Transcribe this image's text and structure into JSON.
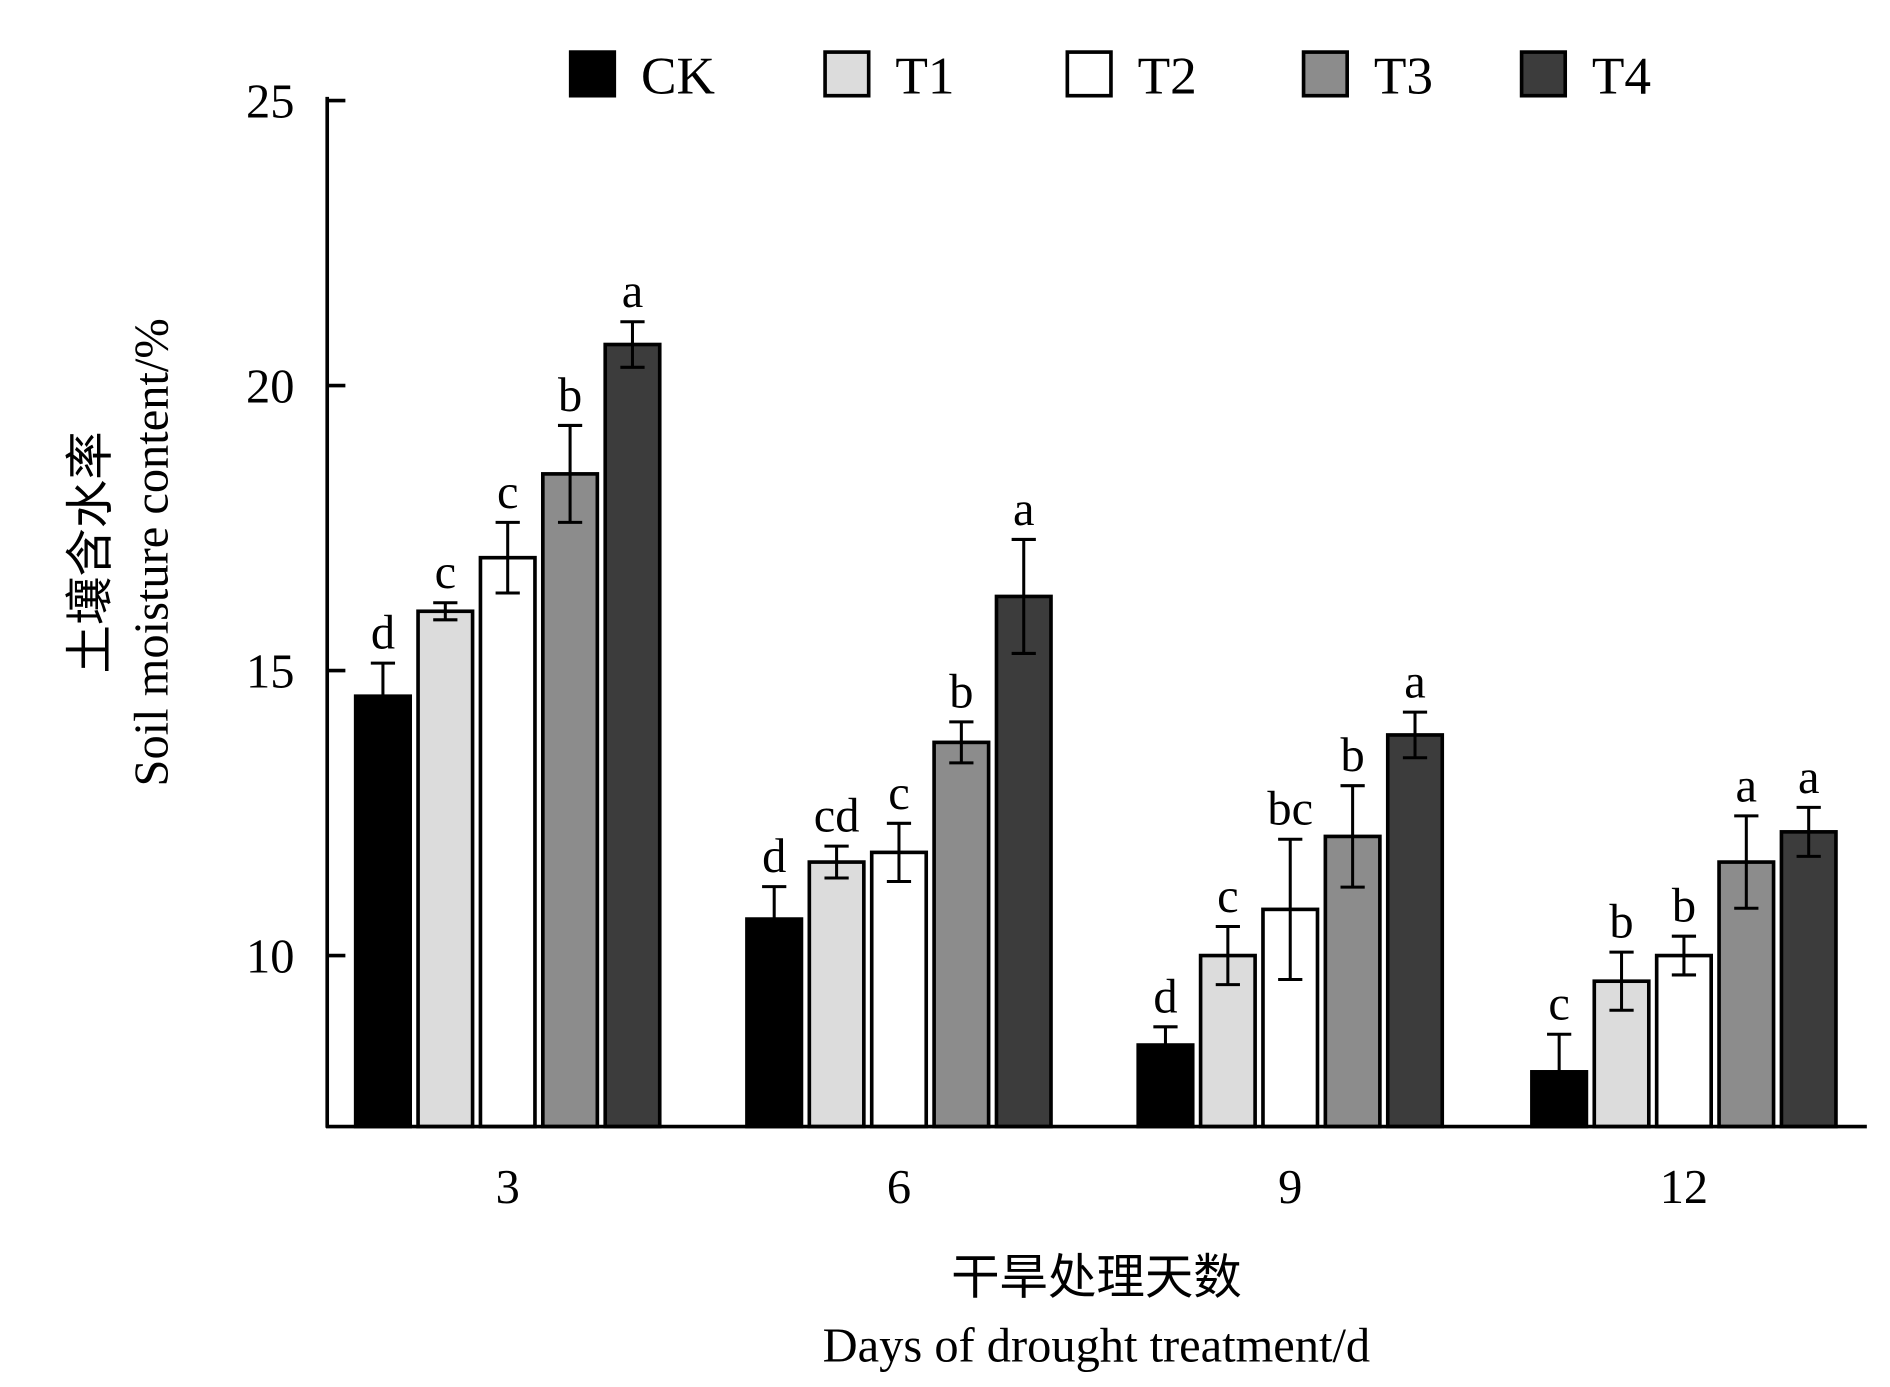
{
  "chart_data": {
    "type": "bar",
    "title": "",
    "xlabel_cn": "干旱处理天数",
    "xlabel": "Days of drought treatment/d",
    "ylabel_cn": "土壤含水率",
    "ylabel": "Soil moisture content/%",
    "ylim": [
      7,
      25
    ],
    "yticks": [
      10,
      15,
      20,
      25
    ],
    "ytick_labels": [
      "10",
      "15",
      "20",
      "25"
    ],
    "categories": [
      "3",
      "6",
      "9",
      "12"
    ],
    "legend_position": "top",
    "series": [
      {
        "name": "CK",
        "color": "#000000",
        "values": [
          14.55,
          10.64,
          8.43,
          7.96
        ],
        "errors": [
          0.58,
          0.57,
          0.32,
          0.66
        ],
        "letters": [
          "d",
          "d",
          "d",
          "c"
        ]
      },
      {
        "name": "T1",
        "color": "#dcdcdc",
        "values": [
          16.04,
          11.64,
          10.0,
          9.55
        ],
        "errors": [
          0.15,
          0.28,
          0.51,
          0.51
        ],
        "letters": [
          "c",
          "cd",
          "c",
          "b"
        ]
      },
      {
        "name": "T2",
        "color": "#ffffff",
        "values": [
          16.98,
          11.81,
          10.81,
          10.0
        ],
        "errors": [
          0.62,
          0.51,
          1.23,
          0.34
        ],
        "letters": [
          "c",
          "c",
          "bc",
          "b"
        ]
      },
      {
        "name": "T3",
        "color": "#8c8c8c",
        "values": [
          18.45,
          13.74,
          12.09,
          11.64
        ],
        "errors": [
          0.85,
          0.36,
          0.89,
          0.81
        ],
        "letters": [
          "b",
          "b",
          "b",
          "a"
        ]
      },
      {
        "name": "T4",
        "color": "#3c3c3c",
        "values": [
          20.72,
          16.3,
          13.87,
          12.17
        ],
        "errors": [
          0.4,
          1.0,
          0.4,
          0.43
        ],
        "letters": [
          "a",
          "a",
          "a",
          "a"
        ]
      }
    ]
  }
}
